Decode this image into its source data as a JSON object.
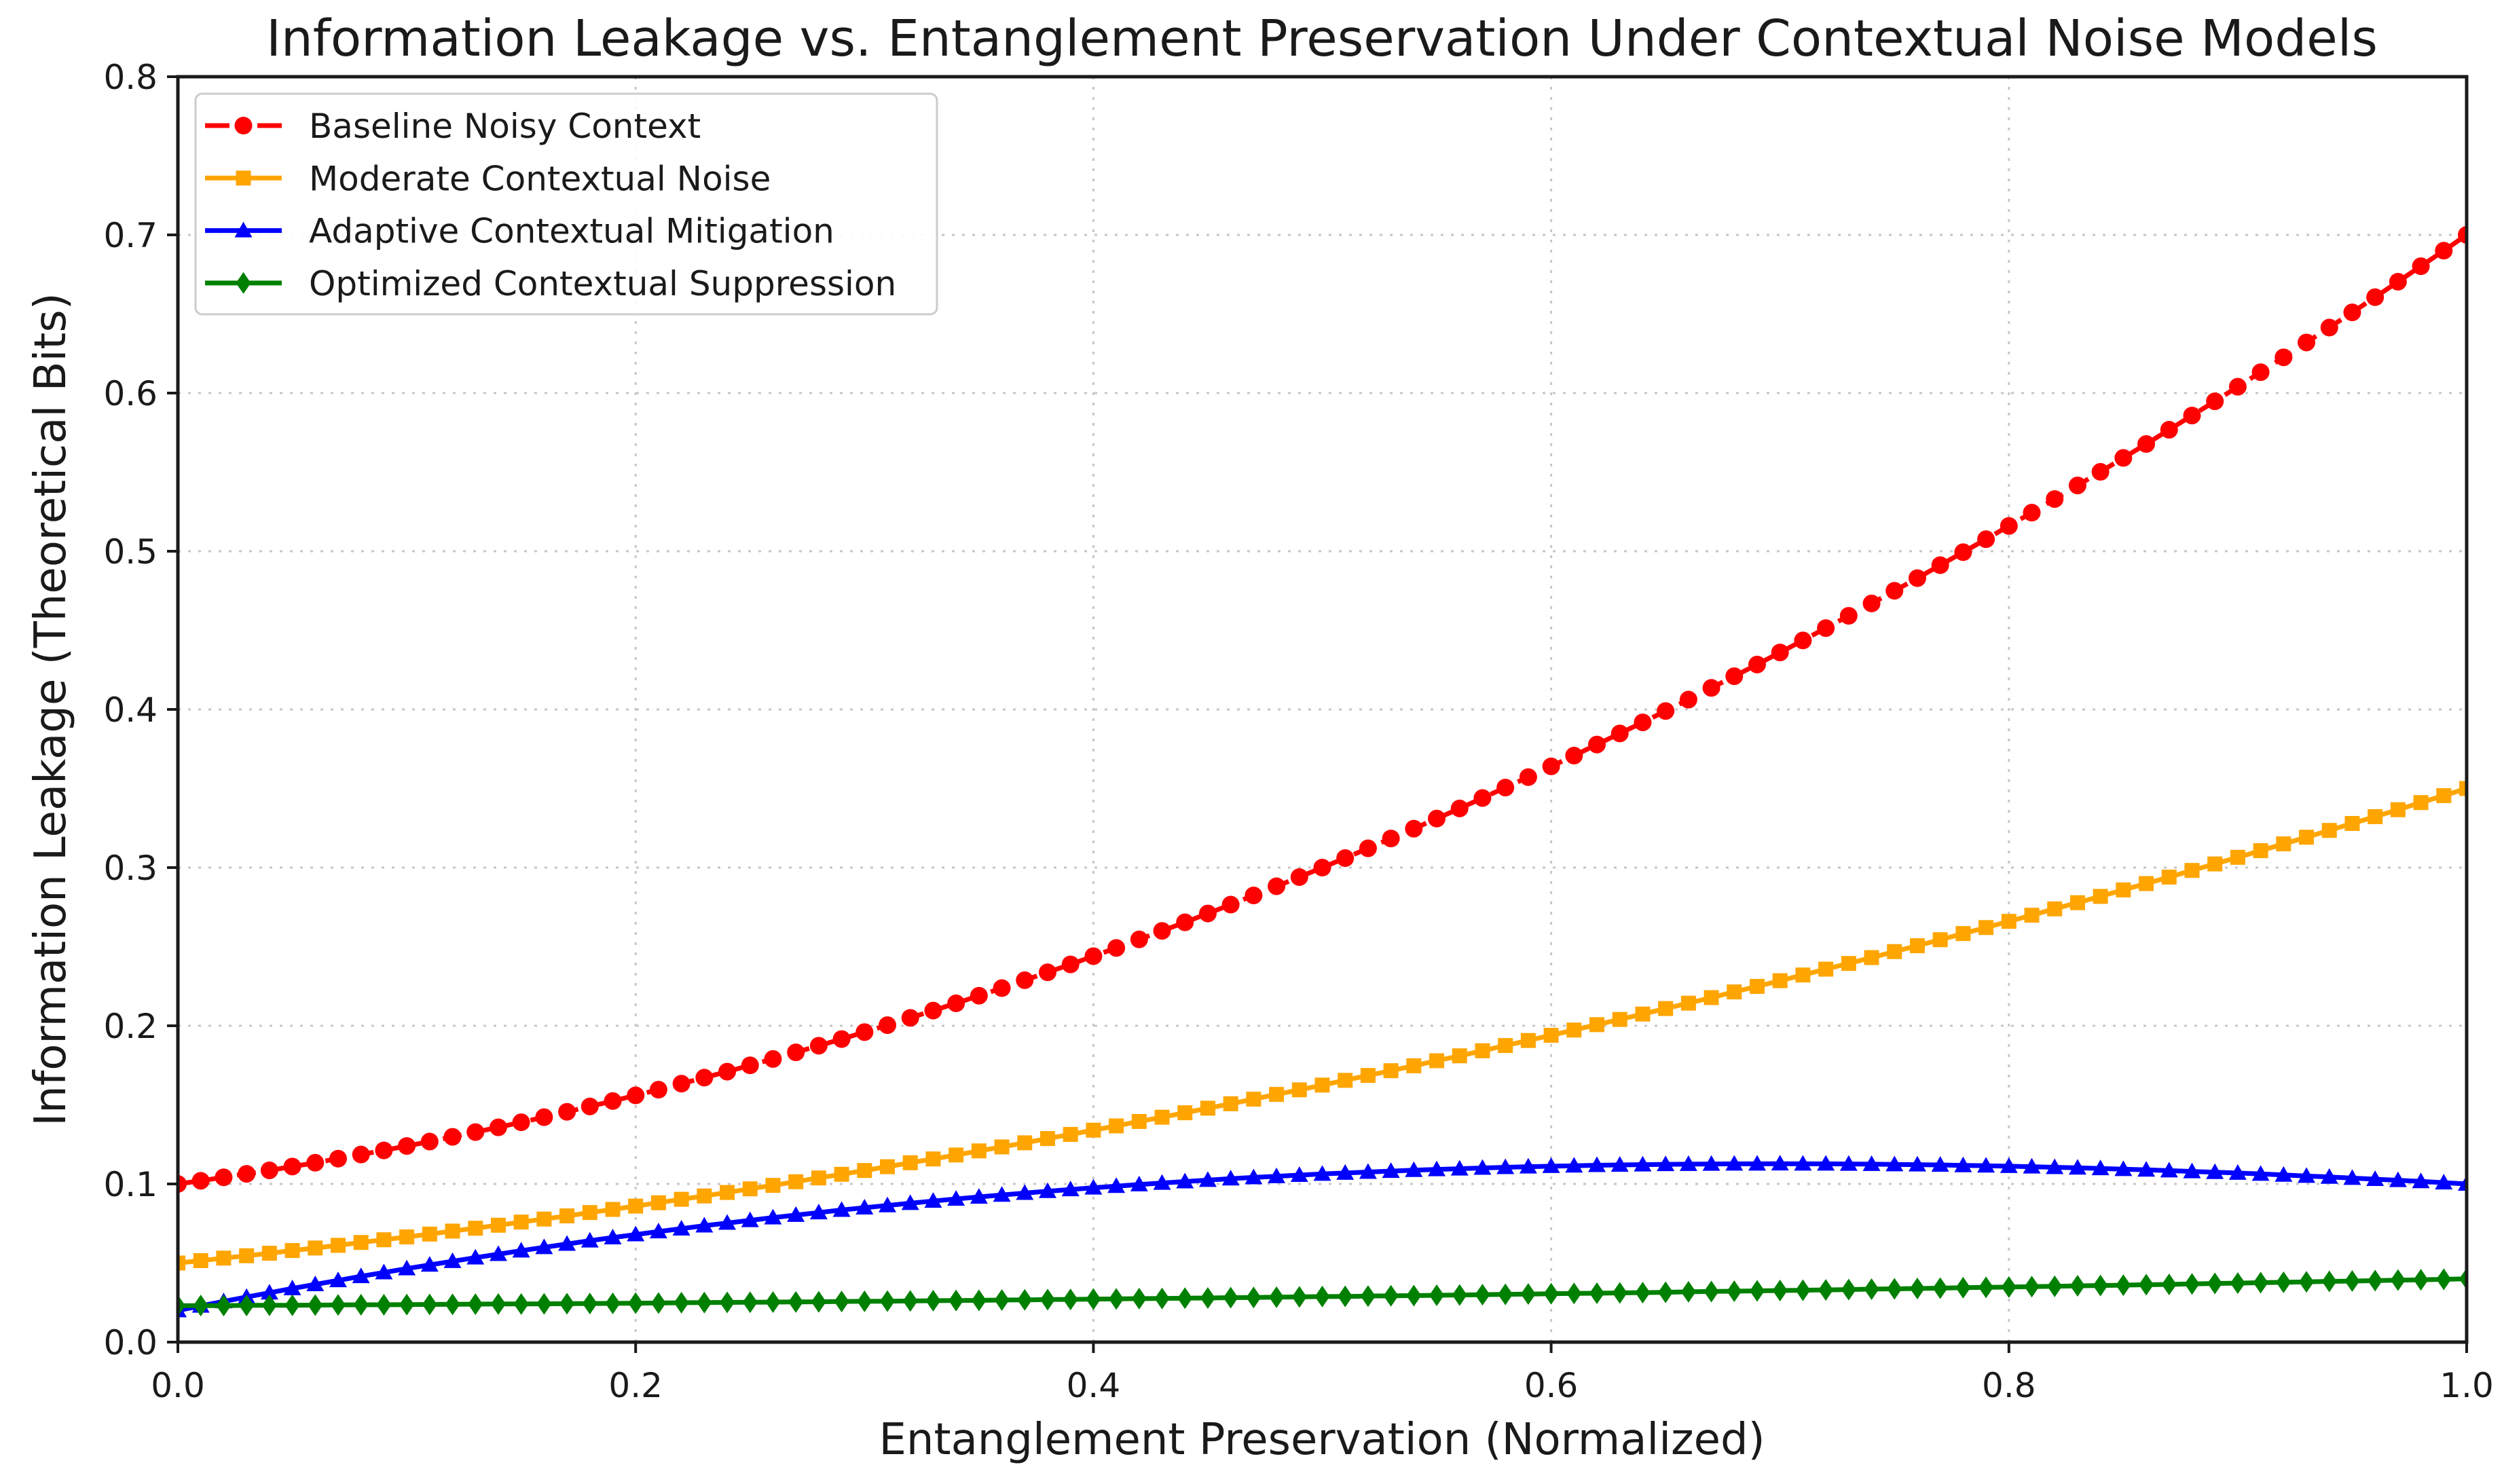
{
  "title": "Information Leakage vs. Entanglement Preservation Under Contextual Noise Models",
  "chart_data": {
    "type": "line",
    "title": "Information Leakage vs. Entanglement Preservation Under Contextual Noise Models",
    "xlabel": "Entanglement Preservation (Normalized)",
    "ylabel": "Information Leakage (Theoretical Bits)",
    "xlim": [
      0.0,
      1.0
    ],
    "ylim": [
      0.0,
      0.8
    ],
    "xticks": [
      "0.0",
      "0.2",
      "0.4",
      "0.6",
      "0.8",
      "1.0"
    ],
    "yticks": [
      "0.0",
      "0.1",
      "0.2",
      "0.3",
      "0.4",
      "0.5",
      "0.6",
      "0.7",
      "0.8"
    ],
    "grid": {
      "show": true,
      "style": "dotted",
      "color": "#c6c6c6"
    },
    "legend_position": "upper left",
    "axis_color": "#1a1a1a",
    "x": [
      0,
      0.01,
      0.02,
      0.03,
      0.04,
      0.05,
      0.06,
      0.07,
      0.08,
      0.09,
      0.1,
      0.11,
      0.12,
      0.13,
      0.14,
      0.15,
      0.16,
      0.17,
      0.18,
      0.19,
      0.2,
      0.21,
      0.22,
      0.23,
      0.24,
      0.25,
      0.26,
      0.27,
      0.28,
      0.29,
      0.3,
      0.31,
      0.32,
      0.33,
      0.34,
      0.35,
      0.36,
      0.37,
      0.38,
      0.39,
      0.4,
      0.41,
      0.42,
      0.43,
      0.44,
      0.45,
      0.46,
      0.47,
      0.48,
      0.49,
      0.5,
      0.51,
      0.52,
      0.53,
      0.54,
      0.55,
      0.56,
      0.57,
      0.58,
      0.59,
      0.6,
      0.61,
      0.62,
      0.63,
      0.64,
      0.65,
      0.66,
      0.67,
      0.68,
      0.69,
      0.7,
      0.71,
      0.72,
      0.73,
      0.74,
      0.75,
      0.76,
      0.77,
      0.78,
      0.79,
      0.8,
      0.81,
      0.82,
      0.83,
      0.84,
      0.85,
      0.86,
      0.87,
      0.88,
      0.89,
      0.9,
      0.91,
      0.92,
      0.93,
      0.94,
      0.95,
      0.96,
      0.97,
      0.98,
      0.99,
      1
    ],
    "series": [
      {
        "name": "Baseline Noisy Context",
        "color": "#ff0000",
        "linestyle": "dashed",
        "marker": "circle",
        "values": [
          0.1,
          0.102,
          0.1042,
          0.1064,
          0.1086,
          0.111,
          0.1134,
          0.116,
          0.1186,
          0.1212,
          0.124,
          0.1268,
          0.1298,
          0.1328,
          0.1358,
          0.139,
          0.1422,
          0.1456,
          0.149,
          0.1524,
          0.156,
          0.1596,
          0.1634,
          0.1672,
          0.171,
          0.175,
          0.179,
          0.1832,
          0.1874,
          0.1916,
          0.196,
          0.2004,
          0.205,
          0.2096,
          0.2142,
          0.219,
          0.2238,
          0.2288,
          0.2338,
          0.2388,
          0.244,
          0.2492,
          0.2546,
          0.26,
          0.2654,
          0.271,
          0.2766,
          0.2824,
          0.2882,
          0.294,
          0.3,
          0.306,
          0.3122,
          0.3184,
          0.3246,
          0.331,
          0.3374,
          0.344,
          0.3506,
          0.3572,
          0.364,
          0.3708,
          0.3778,
          0.3848,
          0.3918,
          0.399,
          0.4062,
          0.4136,
          0.421,
          0.4284,
          0.436,
          0.4436,
          0.4514,
          0.4592,
          0.467,
          0.475,
          0.483,
          0.4912,
          0.4994,
          0.5076,
          0.516,
          0.5244,
          0.533,
          0.5416,
          0.5502,
          0.559,
          0.5678,
          0.5768,
          0.5858,
          0.5948,
          0.604,
          0.6132,
          0.6226,
          0.632,
          0.6414,
          0.651,
          0.6606,
          0.6704,
          0.6802,
          0.69,
          0.7
        ]
      },
      {
        "name": "Moderate Contextual Noise",
        "color": "#ffa500",
        "linestyle": "solid",
        "marker": "square",
        "values": [
          0.05,
          0.0515,
          0.0531,
          0.0546,
          0.0562,
          0.0579,
          0.0595,
          0.0612,
          0.063,
          0.0647,
          0.0665,
          0.0683,
          0.0702,
          0.072,
          0.0739,
          0.0759,
          0.0778,
          0.0798,
          0.0819,
          0.0839,
          0.086,
          0.0881,
          0.0903,
          0.0924,
          0.0946,
          0.0969,
          0.0991,
          0.1014,
          0.1038,
          0.1061,
          0.1085,
          0.1109,
          0.1134,
          0.1158,
          0.1183,
          0.1209,
          0.1234,
          0.126,
          0.1287,
          0.1313,
          0.134,
          0.1367,
          0.1395,
          0.1422,
          0.145,
          0.1479,
          0.1507,
          0.1536,
          0.1566,
          0.1595,
          0.1625,
          0.1655,
          0.1686,
          0.1716,
          0.1747,
          0.1779,
          0.181,
          0.1842,
          0.1875,
          0.1907,
          0.194,
          0.1973,
          0.2007,
          0.204,
          0.2074,
          0.2109,
          0.2143,
          0.2178,
          0.2214,
          0.2249,
          0.2285,
          0.2321,
          0.2358,
          0.2394,
          0.2431,
          0.2469,
          0.2506,
          0.2544,
          0.2583,
          0.2621,
          0.266,
          0.2699,
          0.2739,
          0.2778,
          0.2818,
          0.2859,
          0.2899,
          0.294,
          0.2982,
          0.3023,
          0.3065,
          0.3107,
          0.315,
          0.3192,
          0.3235,
          0.3279,
          0.3322,
          0.3366,
          0.3411,
          0.3455,
          0.35
        ]
      },
      {
        "name": "Adaptive Contextual Mitigation",
        "color": "#0000ff",
        "linestyle": "solid",
        "marker": "triangle-up",
        "values": [
          0.02,
          0.0229,
          0.0257,
          0.0285,
          0.0312,
          0.0339,
          0.0365,
          0.039,
          0.0416,
          0.044,
          0.0465,
          0.0488,
          0.0511,
          0.0534,
          0.0556,
          0.0578,
          0.0599,
          0.062,
          0.0641,
          0.0661,
          0.068,
          0.0699,
          0.0717,
          0.0736,
          0.0753,
          0.077,
          0.0787,
          0.0803,
          0.0819,
          0.0835,
          0.085,
          0.0864,
          0.0878,
          0.0892,
          0.0905,
          0.0918,
          0.093,
          0.0942,
          0.0954,
          0.0965,
          0.0976,
          0.0986,
          0.0996,
          0.1006,
          0.1015,
          0.1024,
          0.1033,
          0.1041,
          0.1048,
          0.1056,
          0.1063,
          0.1069,
          0.1075,
          0.1081,
          0.1087,
          0.1092,
          0.1096,
          0.1101,
          0.1105,
          0.1109,
          0.1112,
          0.1115,
          0.1118,
          0.112,
          0.1122,
          0.1124,
          0.1125,
          0.1126,
          0.1127,
          0.1127,
          0.1128,
          0.1127,
          0.1127,
          0.1126,
          0.1125,
          0.1123,
          0.1122,
          0.112,
          0.1117,
          0.1115,
          0.1112,
          0.1109,
          0.1105,
          0.1102,
          0.1098,
          0.1093,
          0.1089,
          0.1084,
          0.1079,
          0.1074,
          0.1069,
          0.1063,
          0.1057,
          0.105,
          0.1044,
          0.1037,
          0.103,
          0.1023,
          0.1016,
          0.1008,
          0.1
        ]
      },
      {
        "name": "Optimized Contextual Suppression",
        "color": "#008000",
        "linestyle": "solid",
        "marker": "diamond",
        "values": [
          0.023,
          0.0231,
          0.0231,
          0.0232,
          0.0233,
          0.0233,
          0.0234,
          0.0235,
          0.0236,
          0.0236,
          0.0237,
          0.0238,
          0.0239,
          0.024,
          0.0241,
          0.0241,
          0.0242,
          0.0243,
          0.0244,
          0.0245,
          0.0246,
          0.0247,
          0.0249,
          0.025,
          0.0251,
          0.0252,
          0.0253,
          0.0254,
          0.0255,
          0.0257,
          0.0258,
          0.0259,
          0.026,
          0.0262,
          0.0263,
          0.0264,
          0.0266,
          0.0267,
          0.0269,
          0.027,
          0.0272,
          0.0273,
          0.0275,
          0.0276,
          0.0278,
          0.0279,
          0.0281,
          0.0282,
          0.0284,
          0.0286,
          0.0288,
          0.0289,
          0.0291,
          0.0293,
          0.0294,
          0.0296,
          0.0298,
          0.03,
          0.0302,
          0.0304,
          0.0306,
          0.0308,
          0.0309,
          0.0311,
          0.0313,
          0.0315,
          0.0318,
          0.032,
          0.0322,
          0.0324,
          0.0326,
          0.0328,
          0.033,
          0.0332,
          0.0335,
          0.0337,
          0.0339,
          0.0341,
          0.0344,
          0.0346,
          0.0348,
          0.0351,
          0.0353,
          0.0356,
          0.0358,
          0.036,
          0.0363,
          0.0365,
          0.0368,
          0.0371,
          0.0373,
          0.0376,
          0.0378,
          0.0381,
          0.0384,
          0.0386,
          0.0389,
          0.0392,
          0.0394,
          0.0397,
          0.04
        ]
      }
    ]
  }
}
